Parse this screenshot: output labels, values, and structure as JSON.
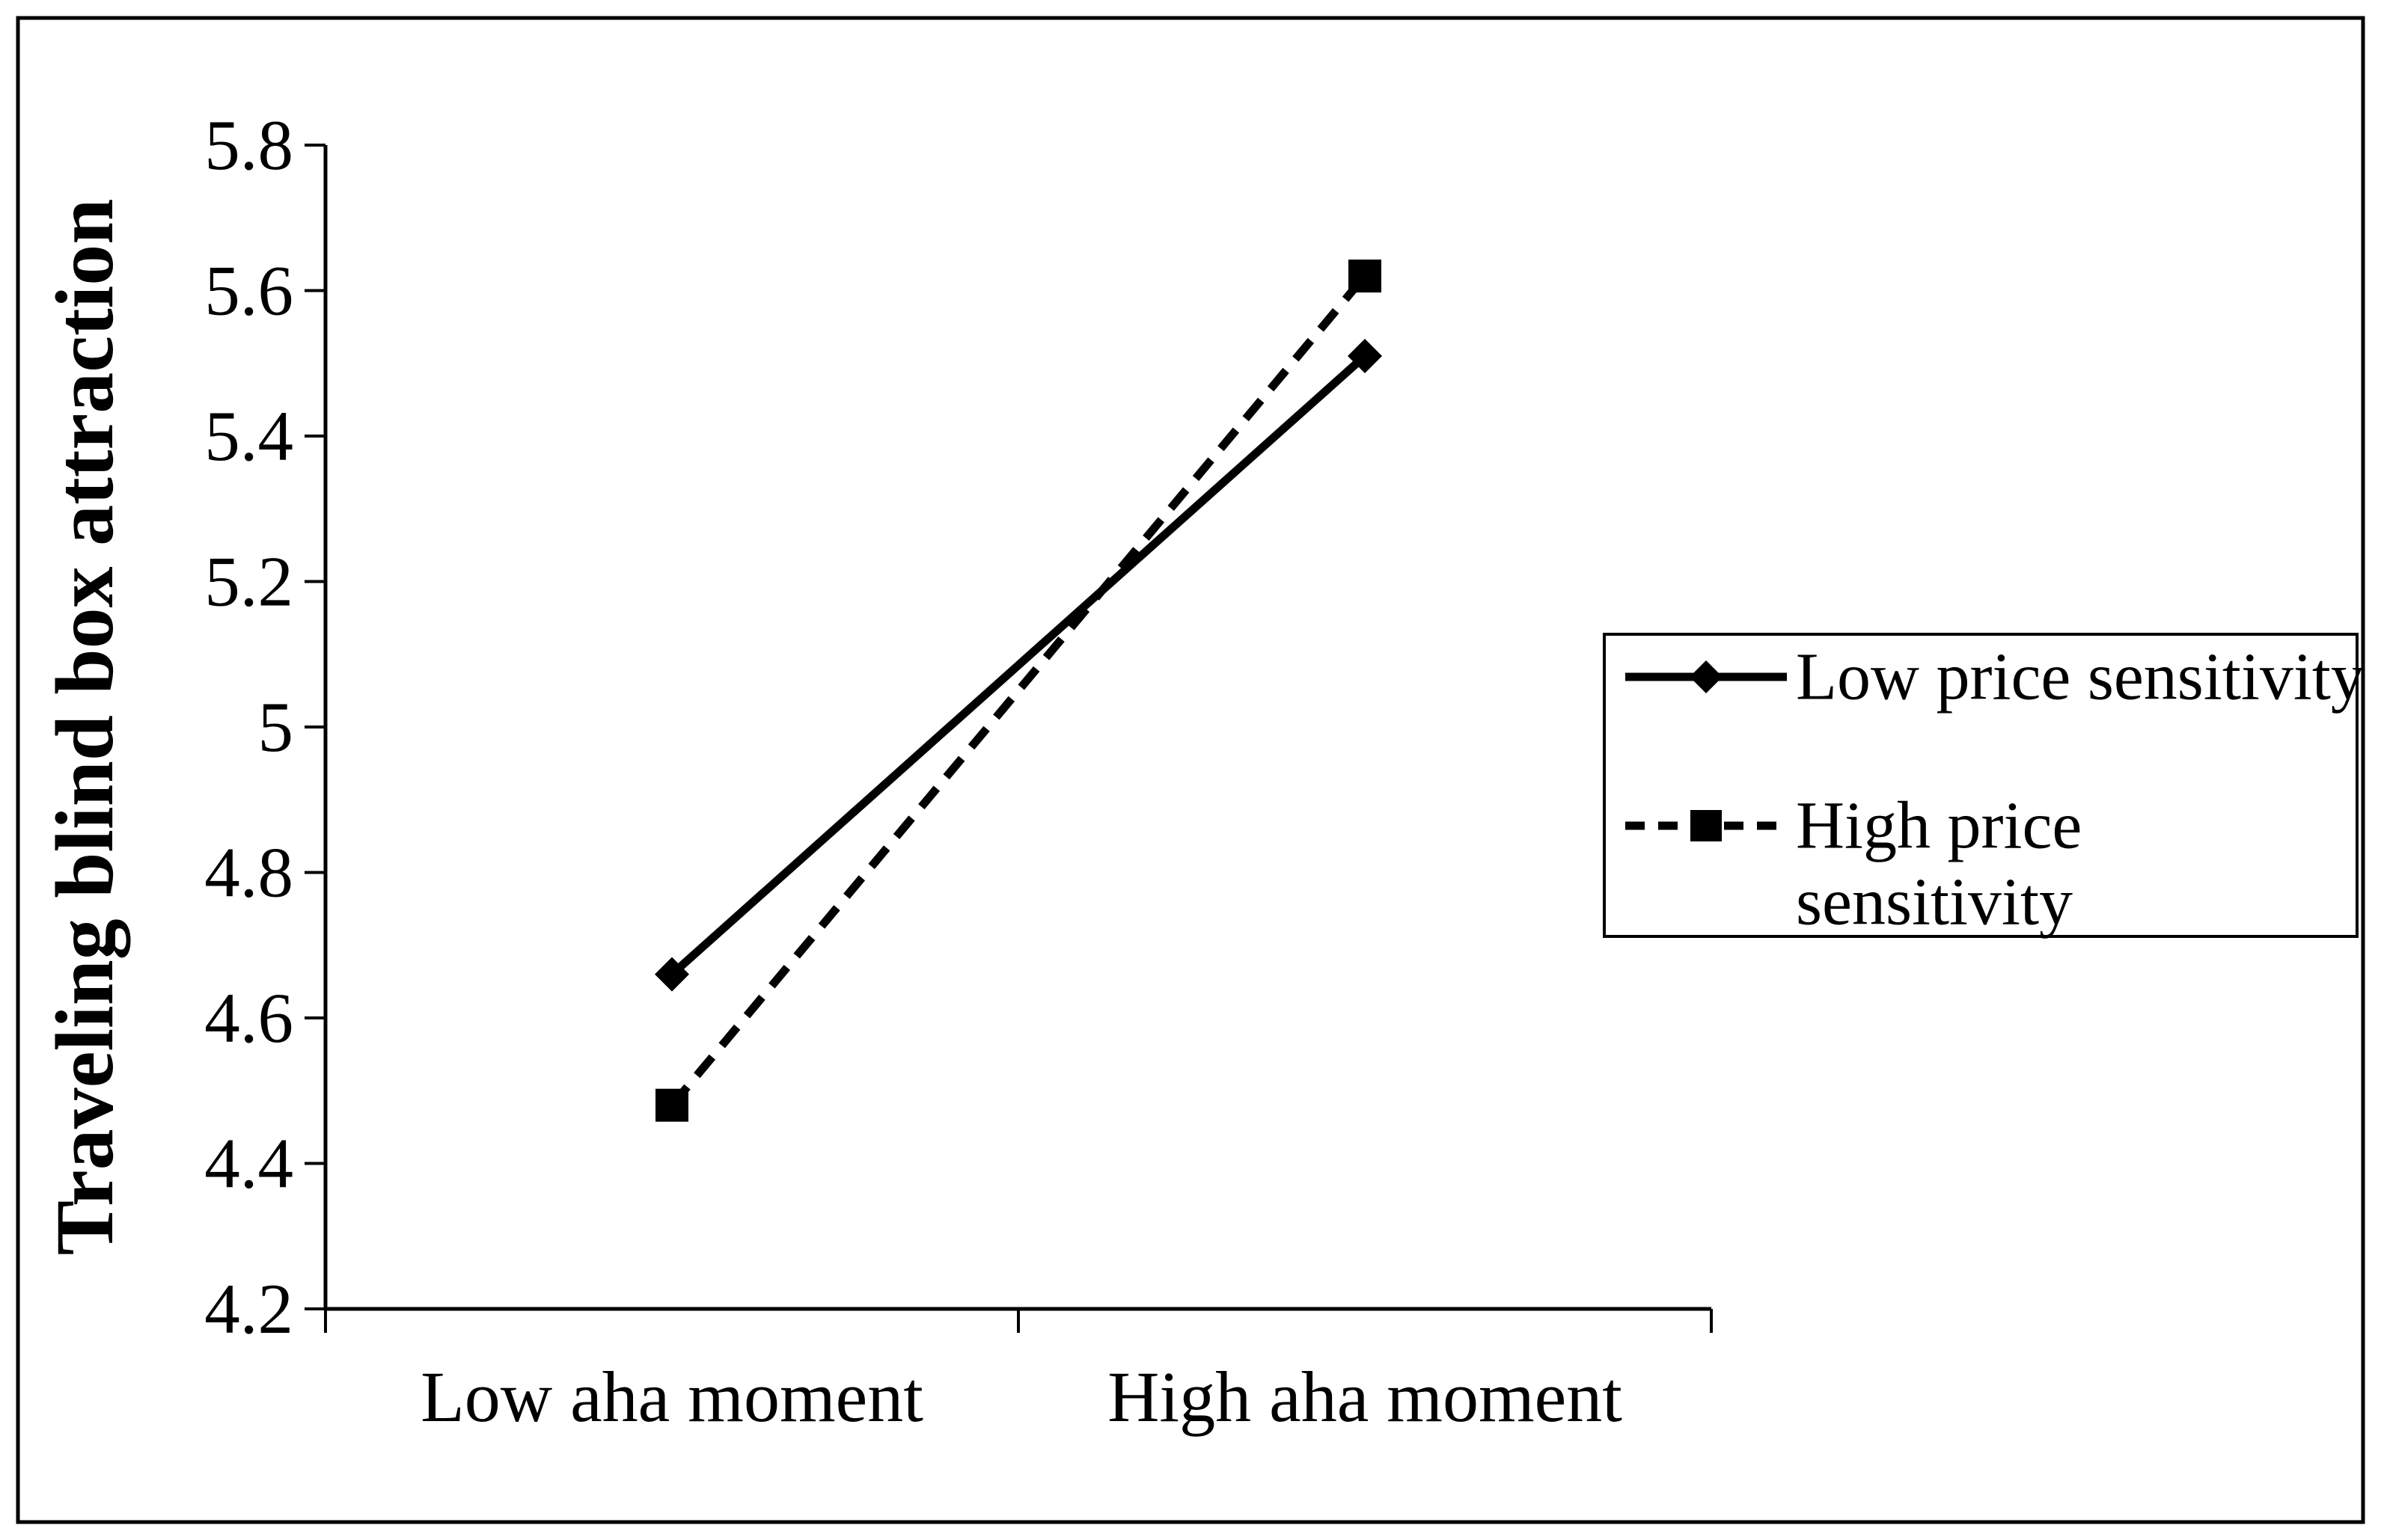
{
  "figure": {
    "background": "#ffffff",
    "border_color": "#000000",
    "ink_color": "#000000"
  },
  "chart_data": {
    "type": "line",
    "title": "",
    "xlabel": "",
    "ylabel": "Traveling blind box attraction",
    "categories": [
      "Low aha moment",
      "High aha moment"
    ],
    "series": [
      {
        "name": "Low price sensitivity",
        "values": [
          4.66,
          5.51
        ],
        "line_style": "solid",
        "marker": "diamond",
        "color": "#000000"
      },
      {
        "name": "High price sensitivity",
        "values": [
          4.48,
          5.62
        ],
        "line_style": "dashed",
        "marker": "square",
        "color": "#000000"
      }
    ],
    "ylim": [
      4.2,
      5.8
    ],
    "ytick_labels": [
      "5.8",
      "5.6",
      "5.4",
      "5.2",
      "5",
      "4.8",
      "4.6",
      "4.4",
      "4.2"
    ],
    "grid": false,
    "legend_position": "right-inside"
  },
  "legend": {
    "items": [
      {
        "label": "Low price sensitivity",
        "lines": [
          "Low price sensitivity"
        ],
        "marker": "diamond",
        "line_style": "solid"
      },
      {
        "label": "High price sensitivity",
        "lines": [
          "High price",
          "sensitivity"
        ],
        "marker": "square",
        "line_style": "dashed"
      }
    ]
  }
}
